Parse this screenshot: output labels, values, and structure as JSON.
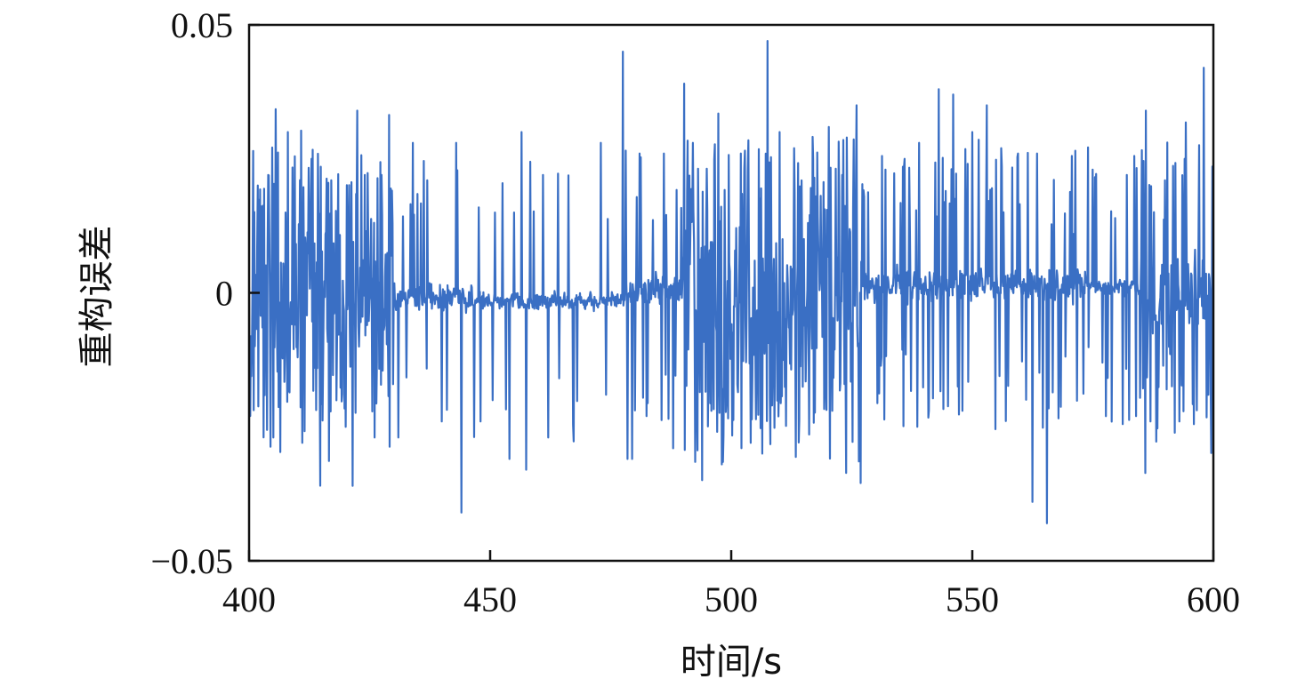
{
  "chart_data": {
    "type": "line",
    "title": "",
    "xlabel": "时间/s",
    "ylabel": "重构误差",
    "xlim": [
      400,
      600
    ],
    "ylim": [
      -0.05,
      0.05
    ],
    "xticks": [
      400,
      450,
      500,
      550,
      600
    ],
    "xtick_labels": [
      "400",
      "450",
      "500",
      "550",
      "600"
    ],
    "yticks": [
      -0.05,
      0,
      0.05
    ],
    "ytick_labels": [
      "−0.05",
      "0",
      "0.05"
    ],
    "grid": false,
    "legend": "none",
    "series": [
      {
        "color": "#3a6fc4",
        "segments": [
          {
            "x": [
              400,
              430
            ],
            "baseline": 0.0,
            "amplitude": 0.016,
            "spikes_per_s": 4.2
          },
          {
            "x": [
              430,
              448
            ],
            "baseline": -0.001,
            "amplitude": 0.003,
            "spikes_per_s": 0.9
          },
          {
            "x": [
              448,
              478
            ],
            "baseline": -0.0015,
            "amplitude": 0.002,
            "spikes_per_s": 0.35
          },
          {
            "x": [
              478,
              490
            ],
            "baseline": 0.001,
            "amplitude": 0.004,
            "spikes_per_s": 1.0
          },
          {
            "x": [
              490,
              527
            ],
            "baseline": 0.0,
            "amplitude": 0.016,
            "spikes_per_s": 4.4
          },
          {
            "x": [
              527,
              575
            ],
            "baseline": 0.0015,
            "amplitude": 0.004,
            "spikes_per_s": 1.6
          },
          {
            "x": [
              575,
              585
            ],
            "baseline": 0.001,
            "amplitude": 0.002,
            "spikes_per_s": 0.6
          },
          {
            "x": [
              585,
              600
            ],
            "baseline": 0.0,
            "amplitude": 0.012,
            "spikes_per_s": 3.0
          }
        ],
        "spikes": [
          {
            "x": 404,
            "y": 0.022
          },
          {
            "x": 405,
            "y": -0.027
          },
          {
            "x": 408,
            "y": 0.03
          },
          {
            "x": 411,
            "y": -0.028
          },
          {
            "x": 413,
            "y": 0.025
          },
          {
            "x": 417,
            "y": 0.021
          },
          {
            "x": 420,
            "y": -0.025
          },
          {
            "x": 421.5,
            "y": -0.036
          },
          {
            "x": 422.5,
            "y": 0.034
          },
          {
            "x": 424,
            "y": 0.022
          },
          {
            "x": 426,
            "y": -0.027
          },
          {
            "x": 427.5,
            "y": 0.022
          },
          {
            "x": 431,
            "y": -0.027
          },
          {
            "x": 434,
            "y": 0.028
          },
          {
            "x": 437,
            "y": 0.021
          },
          {
            "x": 440,
            "y": -0.024
          },
          {
            "x": 443,
            "y": 0.028
          },
          {
            "x": 444,
            "y": -0.041
          },
          {
            "x": 448,
            "y": -0.024
          },
          {
            "x": 451,
            "y": 0.015
          },
          {
            "x": 454,
            "y": -0.031
          },
          {
            "x": 455,
            "y": 0.015
          },
          {
            "x": 456.5,
            "y": 0.03
          },
          {
            "x": 457.5,
            "y": -0.033
          },
          {
            "x": 461,
            "y": 0.022
          },
          {
            "x": 462,
            "y": -0.027
          },
          {
            "x": 473,
            "y": 0.028
          },
          {
            "x": 474,
            "y": -0.019
          },
          {
            "x": 477.5,
            "y": 0.045
          },
          {
            "x": 478.5,
            "y": -0.031
          },
          {
            "x": 479.5,
            "y": -0.031
          },
          {
            "x": 481,
            "y": 0.026
          },
          {
            "x": 482.5,
            "y": -0.023
          },
          {
            "x": 486,
            "y": 0.026
          },
          {
            "x": 488,
            "y": -0.029
          },
          {
            "x": 492,
            "y": 0.028
          },
          {
            "x": 498,
            "y": -0.032
          },
          {
            "x": 502,
            "y": 0.026
          },
          {
            "x": 504,
            "y": -0.028
          },
          {
            "x": 506.5,
            "y": -0.03
          },
          {
            "x": 507.5,
            "y": 0.047
          },
          {
            "x": 508.5,
            "y": -0.021
          },
          {
            "x": 510,
            "y": 0.03
          },
          {
            "x": 513,
            "y": 0.027
          },
          {
            "x": 517,
            "y": 0.025
          },
          {
            "x": 521,
            "y": -0.022
          },
          {
            "x": 523,
            "y": 0.022
          },
          {
            "x": 526,
            "y": 0.035
          },
          {
            "x": 532,
            "y": 0.023
          },
          {
            "x": 536,
            "y": 0.025
          },
          {
            "x": 539,
            "y": 0.028
          },
          {
            "x": 541,
            "y": -0.022
          },
          {
            "x": 543,
            "y": 0.038
          },
          {
            "x": 546,
            "y": 0.037
          },
          {
            "x": 548,
            "y": -0.022
          },
          {
            "x": 550,
            "y": 0.03
          },
          {
            "x": 553,
            "y": 0.035
          },
          {
            "x": 556,
            "y": 0.027
          },
          {
            "x": 559.5,
            "y": 0.026
          },
          {
            "x": 562.5,
            "y": -0.039
          },
          {
            "x": 563.5,
            "y": 0.026
          },
          {
            "x": 565.5,
            "y": -0.043
          },
          {
            "x": 571,
            "y": 0.011
          },
          {
            "x": 575,
            "y": 0.023
          },
          {
            "x": 582,
            "y": 0.022
          },
          {
            "x": 584,
            "y": -0.023
          },
          {
            "x": 586,
            "y": 0.034
          },
          {
            "x": 587,
            "y": -0.024
          },
          {
            "x": 590,
            "y": 0.021
          },
          {
            "x": 593,
            "y": -0.024
          },
          {
            "x": 594,
            "y": 0.025
          },
          {
            "x": 598,
            "y": 0.042
          },
          {
            "x": 599,
            "y": -0.019
          }
        ]
      }
    ]
  }
}
